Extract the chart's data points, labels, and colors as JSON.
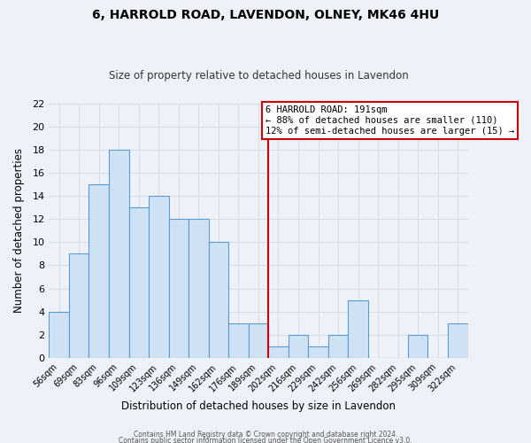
{
  "title": "6, HARROLD ROAD, LAVENDON, OLNEY, MK46 4HU",
  "subtitle": "Size of property relative to detached houses in Lavendon",
  "xlabel": "Distribution of detached houses by size in Lavendon",
  "ylabel": "Number of detached properties",
  "bar_labels": [
    "56sqm",
    "69sqm",
    "83sqm",
    "96sqm",
    "109sqm",
    "123sqm",
    "136sqm",
    "149sqm",
    "162sqm",
    "176sqm",
    "189sqm",
    "202sqm",
    "216sqm",
    "229sqm",
    "242sqm",
    "256sqm",
    "269sqm",
    "282sqm",
    "295sqm",
    "309sqm",
    "322sqm"
  ],
  "bar_heights": [
    4,
    9,
    15,
    18,
    13,
    14,
    12,
    12,
    10,
    3,
    3,
    1,
    2,
    1,
    2,
    5,
    0,
    0,
    2,
    0,
    3
  ],
  "bar_color": "#cfe2f3",
  "bar_edge_color": "#5b9bd5",
  "vline_color": "#cc0000",
  "annotation_title": "6 HARROLD ROAD: 191sqm",
  "annotation_line1": "← 88% of detached houses are smaller (110)",
  "annotation_line2": "12% of semi-detached houses are larger (15) →",
  "annotation_box_color": "#ffffff",
  "annotation_box_edge": "#cc0000",
  "ylim": [
    0,
    22
  ],
  "yticks": [
    0,
    2,
    4,
    6,
    8,
    10,
    12,
    14,
    16,
    18,
    20,
    22
  ],
  "footer1": "Contains HM Land Registry data © Crown copyright and database right 2024.",
  "footer2": "Contains public sector information licensed under the Open Government Licence v3.0.",
  "background_color": "#eef2f8",
  "grid_color": "#d8dce8",
  "bar_width": 1.0
}
